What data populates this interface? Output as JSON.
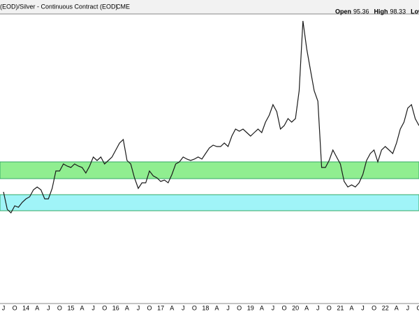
{
  "chart_data": {
    "type": "line",
    "title": "(EOD)/Silver - Continuous Contract (EOD)",
    "subtitle": "CME",
    "ohlc": [
      {
        "label": "Open",
        "value": 95.36
      },
      {
        "label": "High",
        "value": 98.33
      },
      {
        "label": "Low"
      }
    ],
    "categories": [
      "J",
      null,
      null,
      "O",
      null,
      null,
      "14",
      null,
      null,
      "A",
      null,
      null,
      "J",
      null,
      null,
      "O",
      null,
      null,
      "15",
      null,
      null,
      "A",
      null,
      null,
      "J",
      null,
      null,
      "O",
      null,
      null,
      "16",
      null,
      null,
      "A",
      null,
      null,
      "J",
      null,
      null,
      "O",
      null,
      null,
      "17",
      null,
      null,
      "A",
      null,
      null,
      "J",
      null,
      null,
      "O",
      null,
      null,
      "18",
      null,
      null,
      "A",
      null,
      null,
      "J",
      null,
      null,
      "O",
      null,
      null,
      "19",
      null,
      null,
      "A",
      null,
      null,
      "J",
      null,
      null,
      "O",
      null,
      null,
      "20",
      null,
      null,
      "A",
      null,
      null,
      "J",
      null,
      null,
      "O",
      null,
      null,
      "21",
      null,
      null,
      "A",
      null,
      null,
      "J",
      null,
      null,
      "O",
      null,
      null,
      "22",
      null,
      null,
      "A",
      null,
      null,
      "J",
      null,
      null,
      "O"
    ],
    "values": [
      75,
      70,
      69,
      71,
      70.6,
      72,
      73,
      73.6,
      75.6,
      76.4,
      75.6,
      73,
      73,
      76,
      81,
      81,
      83,
      82.4,
      82,
      83,
      82.4,
      82,
      80.4,
      82.4,
      85,
      84,
      85,
      83,
      84,
      85,
      87,
      89,
      90,
      84,
      83,
      79,
      76,
      77.6,
      77.6,
      81,
      79.6,
      79,
      78,
      78.4,
      77.6,
      80,
      83,
      83.6,
      85,
      84.4,
      84,
      84.4,
      85,
      84.4,
      86,
      87.6,
      88.4,
      88,
      88,
      89,
      88,
      91,
      93,
      92.4,
      93,
      92,
      91,
      92,
      93,
      92,
      95,
      97,
      100,
      98,
      93,
      94,
      96,
      95,
      96,
      104,
      124,
      116,
      110,
      104,
      101,
      82,
      82,
      84,
      87,
      85,
      83,
      78,
      76.4,
      77,
      76.4,
      77.6,
      80,
      84,
      86,
      87,
      83.6,
      87,
      88,
      87,
      86,
      89,
      93,
      95,
      99,
      100,
      96,
      94
    ],
    "color": "#1a1a1a",
    "ylim": [
      43,
      126
    ],
    "bands": [
      {
        "from": 78.8,
        "to": 83.6,
        "color": "#90ee90"
      },
      {
        "from": 69.6,
        "to": 74.2,
        "color": "#a0f4f8"
      }
    ]
  }
}
